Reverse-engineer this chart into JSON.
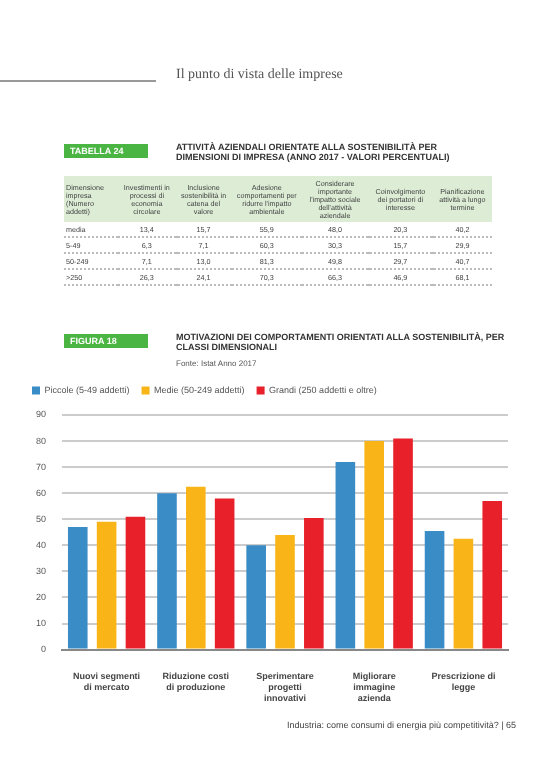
{
  "chart_data": [
    {
      "type": "other",
      "title": "ATTIVITÀ AZIENDALI ORIENTATE ALLA SOSTENIBILITÀ PER DIMENSIONI DI IMPRESA (ANNO 2017 - VALORI PERCENTUALI)",
      "annotations": [
        "Il punto di vista delle imprese",
        "TABELLA 24",
        "Dimensione impresa (Numero addetti)\tInvestimenti in processi di economia circolare\tInclusione sostenibilità in catena del valore\tAdesione comportamenti per ridurre l'impatto ambientale\tConsiderare importante l'impatto sociale dell'attività aziendale\tCoinvolgimento dei portatori di interesse\tPianificazione attività a lungo termine",
        "media\t13,4\t15,7\t55,9\t48,0\t20,3\t40,2",
        "5-49\t6,3\t7,1\t60,3\t30,3\t15,7\t29,9",
        "50-249\t7,1\t13,0\t81,3\t49,8\t29,7\t40,7",
        ">250\t26,3\t24,1\t70,3\t66,3\t46,9\t68,1"
      ]
    },
    {
      "type": "bar",
      "title": "MOTIVAZIONI DEI COMPORTAMENTI ORIENTATI ALLA SOSTENIBILITÀ, PER CLASSI DIMENSIONALI",
      "subtitle": "Fonte: Istat Anno 2017",
      "categories": [
        "Nuovi segmenti di mercato",
        "Riduzione costi di produzione",
        "Sperimentare progetti innovativi",
        "Migliorare immagine azienda",
        "Prescrizione di legge"
      ],
      "series": [
        {
          "name": "Piccole (5-49 addetti)",
          "color": "#3a8cc6",
          "values": [
            47,
            60,
            40,
            72,
            45.5
          ]
        },
        {
          "name": "Medie (50-249 addetti)",
          "color": "#f9b517",
          "values": [
            49,
            62.5,
            44,
            80,
            42.5
          ]
        },
        {
          "name": "Grandi (250 addetti e oltre)",
          "color": "#e8202a",
          "values": [
            51,
            58,
            50.5,
            81,
            57
          ]
        }
      ],
      "ylim": [
        0,
        90
      ],
      "yticks": [
        0,
        10,
        20,
        30,
        40,
        50,
        60,
        70,
        80,
        90
      ],
      "grid": "y",
      "legend": "top left",
      "annotations": [
        "FIGURA 18",
        "Industria: come consumi di energia più competitività? | 65"
      ]
    }
  ]
}
